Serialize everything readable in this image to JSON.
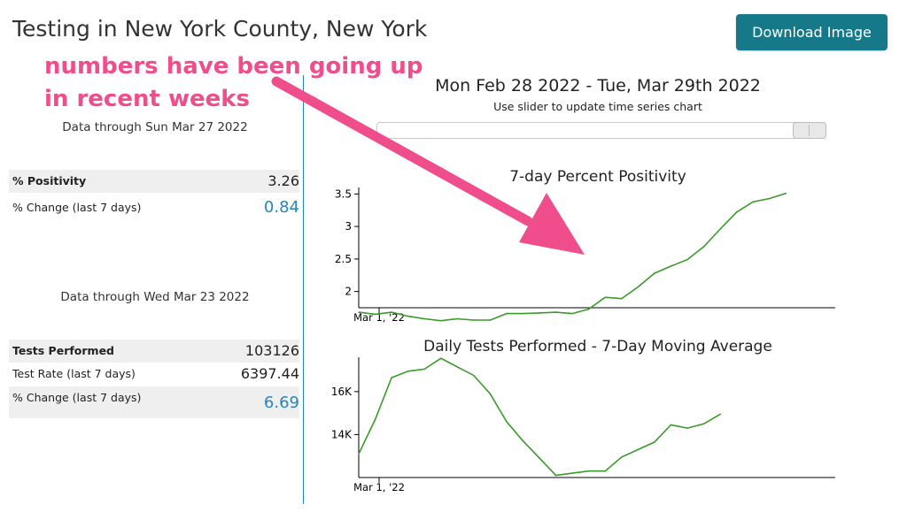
{
  "header": {
    "title": "Testing in New York County, New York",
    "download_label": "Download Image"
  },
  "annotation": {
    "line1": "numbers have been going up",
    "line2": "in recent weeks",
    "color": "#ef4d8c"
  },
  "left_panel": {
    "data_through_1": "Data through Sun Mar 27 2022",
    "positivity_label": "% Positivity",
    "positivity_value": "3.26",
    "positivity_change_label": "% Change (last 7 days)",
    "positivity_change_value": "0.84",
    "data_through_2": "Data through Wed Mar 23 2022",
    "tests_label": "Tests Performed",
    "tests_value": "103126",
    "test_rate_label": "Test Rate (last 7 days)",
    "test_rate_value": "6397.44",
    "tests_change_label": "% Change (last 7 days)",
    "tests_change_value": "6.69"
  },
  "slider": {
    "range_title": "Mon Feb 28 2022 - Tue, Mar 29th 2022",
    "hint": "Use slider to update time series chart",
    "position": 1.0
  },
  "colors": {
    "accent": "#16798a",
    "line": "#3a9a2a",
    "positive_value": "#2486b8"
  },
  "chart_data": [
    {
      "type": "line",
      "title": "7-day Percent Positivity",
      "x_tick_label": "Mar 1, '22",
      "y_ticks": [
        2,
        2.5,
        3,
        3.5
      ],
      "y_tick_labels": [
        "2",
        "2.5",
        "3",
        "3.5"
      ],
      "ylim": [
        1.75,
        3.6
      ],
      "x_domain": [
        0,
        29
      ],
      "series": [
        {
          "x": [
            0,
            1,
            2,
            3,
            4,
            5,
            6,
            7,
            8,
            9,
            10,
            11,
            12,
            13,
            14,
            15,
            16,
            17,
            18,
            19,
            20,
            21,
            22,
            23,
            24,
            25,
            26
          ],
          "values": [
            1.68,
            1.65,
            1.68,
            1.62,
            1.58,
            1.55,
            1.58,
            1.56,
            1.56,
            1.66,
            1.66,
            1.67,
            1.68,
            1.66,
            1.73,
            1.91,
            1.89,
            2.07,
            2.28,
            2.39,
            2.49,
            2.69,
            2.96,
            3.22,
            3.38,
            3.43,
            3.51
          ]
        }
      ]
    },
    {
      "type": "line",
      "title": "Daily Tests Performed - 7-Day Moving Average",
      "x_tick_label": "Mar 1, '22",
      "y_ticks": [
        14000,
        16000
      ],
      "y_tick_labels": [
        "14K",
        "16K"
      ],
      "ylim": [
        12000,
        17600
      ],
      "x_domain": [
        0,
        29
      ],
      "series": [
        {
          "x": [
            0,
            1,
            2,
            3,
            4,
            5,
            6,
            7,
            8,
            9,
            10,
            11,
            12,
            13,
            14,
            15,
            16,
            17,
            18,
            19,
            20,
            21,
            22
          ],
          "values": [
            13100,
            14700,
            16650,
            16950,
            17050,
            17550,
            17150,
            16750,
            15900,
            14600,
            13700,
            12900,
            12100,
            12200,
            12300,
            12300,
            12950,
            13300,
            13650,
            14450,
            14300,
            14500,
            14950
          ]
        }
      ]
    }
  ]
}
